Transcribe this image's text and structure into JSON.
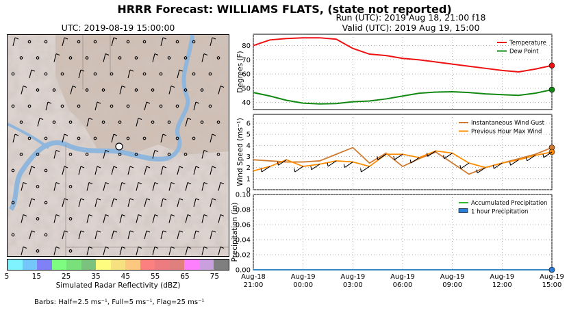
{
  "header": {
    "title": "HRRR Forecast: WILLIAMS FLATS, (state not reported)",
    "map_title": "UTC: 2019-08-19 15:00:00",
    "run_label": "Run (UTC): 2019 Aug 18, 21:00 f18",
    "valid_label": "Valid (UTC): 2019 Aug 19, 15:00"
  },
  "colorbar": {
    "title": "Simulated Radar Reflectivity (dBZ)",
    "ticks": [
      "5",
      "15",
      "25",
      "35",
      "45",
      "55",
      "65",
      "75"
    ],
    "colors": [
      "#7ff3ff",
      "#74c7f9",
      "#8181f7",
      "#7efc81",
      "#7ae07c",
      "#7cc27f",
      "#fffd80",
      "#f5e17f",
      "#fcc77f",
      "#fc807f",
      "#ec7c7f",
      "#df807f",
      "#fd7ffe",
      "#c9a0dd",
      "#7f7f7f"
    ]
  },
  "barbs_note": "Barbs: Half=2.5 ms⁻¹, Full=5 ms⁻¹, Flag=25 ms⁻¹",
  "chart_data": [
    {
      "type": "line",
      "ylabel": "Degrees (F)",
      "ylim": [
        35,
        88
      ],
      "yticks": [
        "40",
        "50",
        "60",
        "70",
        "80"
      ],
      "grid": true,
      "legend_position": "top-right",
      "x": [
        0,
        1,
        2,
        3,
        4,
        5,
        6,
        7,
        8,
        9,
        10,
        11,
        12,
        13,
        14,
        15,
        16,
        17,
        18
      ],
      "series": [
        {
          "name": "Temperature",
          "color": "#ee1111",
          "values": [
            80,
            84,
            85,
            85.5,
            85.5,
            84.5,
            78,
            74,
            73,
            71,
            70,
            68.5,
            67,
            65.5,
            64,
            62.5,
            61.5,
            63.5,
            66
          ]
        },
        {
          "name": "Dew Point",
          "color": "#118811",
          "values": [
            47,
            44.5,
            41.5,
            39.5,
            39,
            39.2,
            40.5,
            41,
            42.5,
            44.5,
            46.5,
            47.3,
            47.5,
            47,
            46,
            45.5,
            45,
            46.5,
            49
          ]
        }
      ]
    },
    {
      "type": "line",
      "ylabel": "Wind Speed (ms⁻¹)",
      "ylim": [
        0,
        6.8
      ],
      "yticks": [
        "0",
        "1",
        "2",
        "3",
        "4",
        "5",
        "6"
      ],
      "grid": true,
      "legend_position": "top-right",
      "x": [
        0,
        1,
        2,
        3,
        4,
        5,
        6,
        7,
        8,
        9,
        10,
        11,
        12,
        13,
        14,
        15,
        16,
        17,
        18
      ],
      "series": [
        {
          "name": "Instantaneous Wind Gust",
          "color": "#d07a30",
          "values": [
            2.7,
            2.6,
            2.5,
            2.5,
            2.6,
            3.2,
            3.8,
            2.4,
            3.3,
            2.1,
            2.8,
            3.4,
            2.4,
            1.4,
            2.0,
            2.4,
            2.8,
            3.2,
            3.8
          ]
        },
        {
          "name": "Previous Hour Max Wind",
          "color": "#ff8c00",
          "values": [
            1.7,
            2.1,
            2.7,
            2.1,
            2.3,
            2.6,
            2.5,
            2.1,
            3.2,
            3.2,
            2.9,
            3.5,
            3.3,
            2.4,
            2.0,
            2.4,
            2.7,
            3.1,
            3.4
          ]
        }
      ]
    },
    {
      "type": "area",
      "ylabel": "Precipitation (in)",
      "ylim": [
        0,
        0.1
      ],
      "yticks": [
        "0.00",
        "0.02",
        "0.04",
        "0.06",
        "0.08",
        "0.10"
      ],
      "grid": true,
      "legend_position": "top-right",
      "x": [
        0,
        1,
        2,
        3,
        4,
        5,
        6,
        7,
        8,
        9,
        10,
        11,
        12,
        13,
        14,
        15,
        16,
        17,
        18
      ],
      "series": [
        {
          "name": "Accumulated Precipitation",
          "color": "#2eb82e",
          "values": [
            0,
            0,
            0,
            0,
            0,
            0,
            0,
            0,
            0,
            0,
            0,
            0,
            0,
            0,
            0,
            0,
            0,
            0,
            0
          ]
        },
        {
          "name": "1 hour Precipitation",
          "color": "#2b7fd6",
          "values": [
            0,
            0,
            0,
            0,
            0,
            0,
            0,
            0,
            0,
            0,
            0,
            0,
            0,
            0,
            0,
            0,
            0,
            0,
            0
          ]
        }
      ]
    }
  ],
  "xaxis": {
    "ticks": [
      {
        "x": 0,
        "line1": "Aug-18",
        "line2": "21:00"
      },
      {
        "x": 3,
        "line1": "Aug-19",
        "line2": "00:00"
      },
      {
        "x": 6,
        "line1": "Aug-19",
        "line2": "03:00"
      },
      {
        "x": 9,
        "line1": "Aug-19",
        "line2": "06:00"
      },
      {
        "x": 12,
        "line1": "Aug-19",
        "line2": "09:00"
      },
      {
        "x": 15,
        "line1": "Aug-19",
        "line2": "12:00"
      },
      {
        "x": 18,
        "line1": "Aug-19",
        "line2": "15:00"
      }
    ]
  }
}
